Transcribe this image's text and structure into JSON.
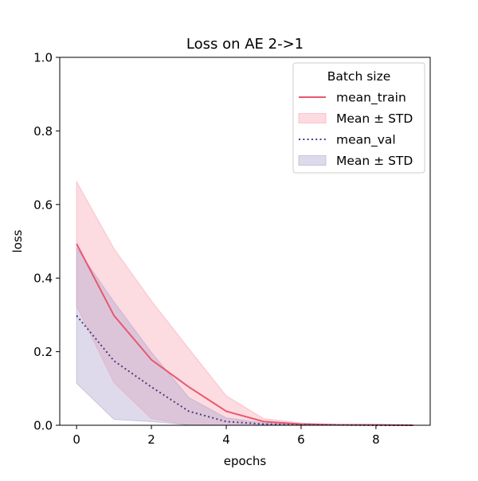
{
  "chart_data": {
    "type": "line",
    "title": "Loss on AE 2->1",
    "xlabel": "epochs",
    "ylabel": "loss",
    "xlim": [
      -0.45,
      9.45
    ],
    "ylim": [
      0.0,
      1.0
    ],
    "xticks": [
      0,
      2,
      4,
      6,
      8
    ],
    "yticks": [
      0.0,
      0.2,
      0.4,
      0.6,
      0.8,
      1.0
    ],
    "x": [
      0,
      1,
      2,
      3,
      4,
      5,
      6,
      7,
      8,
      9
    ],
    "series": [
      {
        "name": "mean_train",
        "style": "solid",
        "color": "#e8586f",
        "mean": [
          0.493,
          0.298,
          0.178,
          0.104,
          0.038,
          0.01,
          0.003,
          0.001,
          0.001,
          0.0
        ],
        "upper": [
          0.662,
          0.48,
          0.338,
          0.208,
          0.08,
          0.018,
          0.006,
          0.002,
          0.001,
          0.001
        ],
        "upper_label": "",
        "band_label": "Mean ± STD",
        "band_color": "#f7a9b8",
        "lower": [
          0.324,
          0.116,
          0.018,
          0.0,
          0.0,
          0.0,
          0.0,
          0.0,
          0.0,
          0.0
        ]
      },
      {
        "name": "mean_val",
        "style": "dotted",
        "color": "#4a3c80",
        "mean": [
          0.298,
          0.175,
          0.104,
          0.038,
          0.01,
          0.003,
          0.001,
          0.001,
          0.0,
          0.0
        ],
        "upper": [
          0.482,
          0.335,
          0.198,
          0.075,
          0.02,
          0.006,
          0.002,
          0.001,
          0.001,
          0.0
        ],
        "band_label": "Mean ± STD",
        "band_color": "#b3a6cf",
        "lower": [
          0.114,
          0.016,
          0.01,
          0.001,
          0.0,
          0.0,
          0.0,
          0.0,
          0.0,
          0.0
        ]
      }
    ],
    "legend": {
      "title": "Batch size",
      "placement": "top-right",
      "entries": [
        "mean_train",
        "Mean ± STD",
        "mean_val",
        "Mean ± STD"
      ]
    },
    "grid": false
  }
}
